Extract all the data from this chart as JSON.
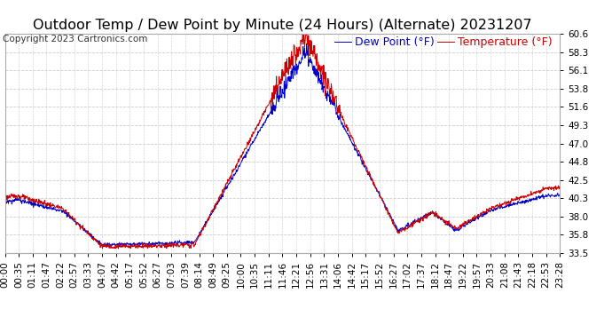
{
  "title": "Outdoor Temp / Dew Point by Minute (24 Hours) (Alternate) 20231207",
  "copyright": "Copyright 2023 Cartronics.com",
  "legend_dewpoint": "Dew Point (°F)",
  "legend_temp": "Temperature (°F)",
  "yticks": [
    33.5,
    35.8,
    38.0,
    40.3,
    42.5,
    44.8,
    47.0,
    49.3,
    51.6,
    53.8,
    56.1,
    58.3,
    60.6
  ],
  "ylim": [
    33.5,
    60.6
  ],
  "xtick_labels": [
    "00:00",
    "00:35",
    "01:11",
    "01:47",
    "02:22",
    "02:57",
    "03:33",
    "04:07",
    "04:42",
    "05:17",
    "05:52",
    "06:27",
    "07:03",
    "07:39",
    "08:14",
    "08:49",
    "09:25",
    "10:00",
    "10:35",
    "11:11",
    "11:46",
    "12:21",
    "12:56",
    "13:31",
    "14:06",
    "14:42",
    "15:17",
    "15:52",
    "16:27",
    "17:02",
    "17:37",
    "18:12",
    "18:47",
    "19:22",
    "19:57",
    "20:33",
    "21:08",
    "21:43",
    "22:18",
    "22:53",
    "23:28"
  ],
  "temp_color": "#cc0000",
  "dewpoint_color": "#0000cc",
  "bg_color": "#ffffff",
  "grid_color": "#cccccc",
  "title_fontsize": 11.5,
  "copyright_fontsize": 7.5,
  "legend_fontsize": 9,
  "tick_fontsize": 7.5
}
